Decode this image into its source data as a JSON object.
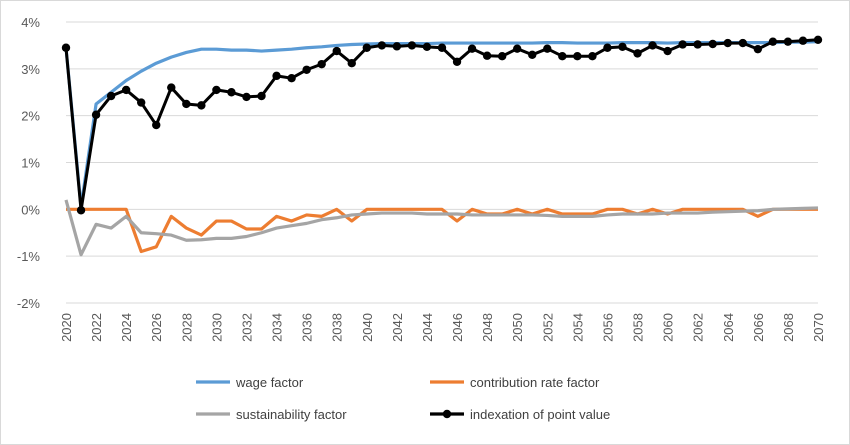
{
  "chart_data": {
    "type": "line",
    "title": "",
    "xlabel": "",
    "ylabel": "",
    "ylim": [
      -2,
      4
    ],
    "ytick_values": [
      -2,
      -1,
      0,
      1,
      2,
      3,
      4
    ],
    "ytick_labels": [
      "-2%",
      "-1%",
      "0%",
      "1%",
      "2%",
      "3%",
      "4%"
    ],
    "x": [
      2020,
      2021,
      2022,
      2023,
      2024,
      2025,
      2026,
      2027,
      2028,
      2029,
      2030,
      2031,
      2032,
      2033,
      2034,
      2035,
      2036,
      2037,
      2038,
      2039,
      2040,
      2041,
      2042,
      2043,
      2044,
      2045,
      2046,
      2047,
      2048,
      2049,
      2050,
      2051,
      2052,
      2053,
      2054,
      2055,
      2056,
      2057,
      2058,
      2059,
      2060,
      2061,
      2062,
      2063,
      2064,
      2065,
      2066,
      2067,
      2068,
      2069,
      2070
    ],
    "xtick_labels": [
      "2020",
      "2022",
      "2024",
      "2026",
      "2028",
      "2030",
      "2032",
      "2034",
      "2036",
      "2038",
      "2040",
      "2042",
      "2044",
      "2046",
      "2048",
      "2050",
      "2052",
      "2054",
      "2056",
      "2058",
      "2060",
      "2062",
      "2064",
      "2066",
      "2068",
      "2070"
    ],
    "grid": "horizontal",
    "legend_position": "bottom",
    "series": [
      {
        "name": "wage factor",
        "color": "#5b9bd5",
        "marker": false,
        "values": [
          3.45,
          0.05,
          2.25,
          2.5,
          2.75,
          2.95,
          3.12,
          3.25,
          3.35,
          3.42,
          3.42,
          3.4,
          3.4,
          3.38,
          3.4,
          3.42,
          3.45,
          3.47,
          3.5,
          3.52,
          3.53,
          3.54,
          3.54,
          3.54,
          3.54,
          3.55,
          3.55,
          3.55,
          3.55,
          3.55,
          3.55,
          3.55,
          3.56,
          3.56,
          3.55,
          3.55,
          3.55,
          3.56,
          3.56,
          3.56,
          3.55,
          3.56,
          3.56,
          3.56,
          3.56,
          3.56,
          3.56,
          3.56,
          3.57,
          3.57,
          3.58
        ]
      },
      {
        "name": "contribution rate factor",
        "color": "#ed7d31",
        "marker": false,
        "values": [
          0,
          0,
          0,
          0,
          0,
          -0.9,
          -0.8,
          -0.15,
          -0.4,
          -0.55,
          -0.25,
          -0.25,
          -0.42,
          -0.42,
          -0.15,
          -0.25,
          -0.12,
          -0.15,
          0,
          -0.25,
          0,
          0,
          0,
          0,
          0,
          0,
          -0.25,
          0,
          -0.1,
          -0.1,
          0,
          -0.1,
          0,
          -0.1,
          -0.1,
          -0.1,
          0,
          0,
          -0.1,
          0,
          -0.1,
          0,
          0,
          0,
          0,
          0,
          -0.15,
          0,
          0,
          0,
          0
        ]
      },
      {
        "name": "sustainability factor",
        "color": "#a5a5a5",
        "marker": false,
        "values": [
          0.2,
          -0.97,
          -0.32,
          -0.4,
          -0.15,
          -0.5,
          -0.52,
          -0.55,
          -0.66,
          -0.65,
          -0.62,
          -0.62,
          -0.58,
          -0.5,
          -0.4,
          -0.35,
          -0.3,
          -0.22,
          -0.18,
          -0.12,
          -0.1,
          -0.08,
          -0.08,
          -0.08,
          -0.1,
          -0.1,
          -0.1,
          -0.12,
          -0.12,
          -0.12,
          -0.12,
          -0.12,
          -0.13,
          -0.15,
          -0.15,
          -0.15,
          -0.12,
          -0.1,
          -0.1,
          -0.1,
          -0.08,
          -0.08,
          -0.08,
          -0.06,
          -0.05,
          -0.04,
          -0.03,
          0,
          0.01,
          0.02,
          0.03
        ]
      },
      {
        "name": "indexation of point value",
        "color": "#000000",
        "marker": true,
        "values": [
          3.45,
          -0.02,
          2.02,
          2.42,
          2.55,
          2.28,
          1.8,
          2.6,
          2.25,
          2.22,
          2.55,
          2.5,
          2.4,
          2.42,
          2.85,
          2.8,
          2.98,
          3.1,
          3.38,
          3.12,
          3.45,
          3.5,
          3.48,
          3.5,
          3.47,
          3.45,
          3.15,
          3.43,
          3.28,
          3.27,
          3.43,
          3.3,
          3.43,
          3.27,
          3.27,
          3.27,
          3.45,
          3.47,
          3.33,
          3.5,
          3.38,
          3.52,
          3.52,
          3.53,
          3.55,
          3.55,
          3.42,
          3.58,
          3.58,
          3.6,
          3.62
        ]
      }
    ]
  }
}
